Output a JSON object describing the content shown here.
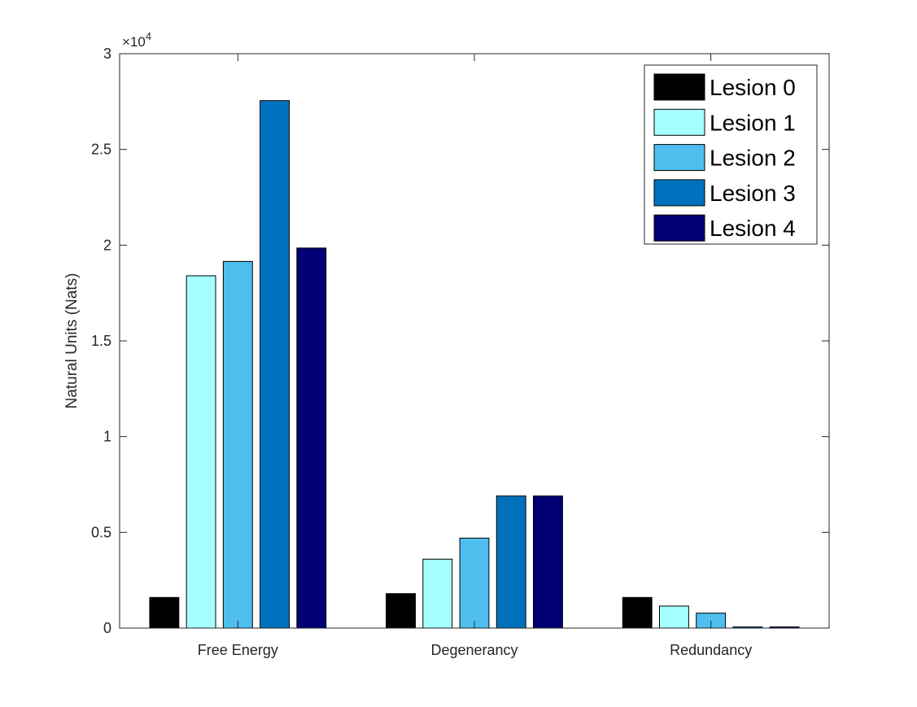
{
  "chart_data": {
    "type": "bar",
    "title": "",
    "xlabel": "",
    "ylabel": "Natural Units (Nats)",
    "exponent_label": "×10",
    "exponent_power": "4",
    "ylim": [
      0,
      30000
    ],
    "yticks": [
      0,
      5000,
      10000,
      15000,
      20000,
      25000,
      30000
    ],
    "ytick_labels": [
      "0",
      "0.5",
      "1",
      "1.5",
      "2",
      "2.5",
      "3"
    ],
    "categories": [
      "Free Energy",
      "Degenerancy",
      "Redundancy"
    ],
    "grid": false,
    "legend_position": "top-right",
    "series": [
      {
        "name": "Lesion 0",
        "color": "#000000",
        "values": [
          1600,
          1800,
          1600
        ]
      },
      {
        "name": "Lesion 1",
        "color": "#A6FFFF",
        "values": [
          18400,
          3600,
          1150
        ]
      },
      {
        "name": "Lesion 2",
        "color": "#4DBEEE",
        "values": [
          19150,
          4700,
          780
        ]
      },
      {
        "name": "Lesion 3",
        "color": "#0072BD",
        "values": [
          27550,
          6900,
          60
        ]
      },
      {
        "name": "Lesion 4",
        "color": "#000074",
        "values": [
          19850,
          6900,
          60
        ]
      }
    ]
  }
}
